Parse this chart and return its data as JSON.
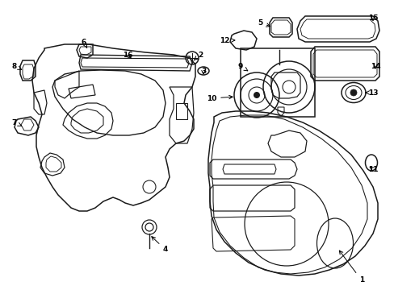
{
  "bg_color": "#ffffff",
  "line_color": "#1a1a1a",
  "lw": 1.1,
  "figsize": [
    4.89,
    3.6
  ],
  "dpi": 100
}
